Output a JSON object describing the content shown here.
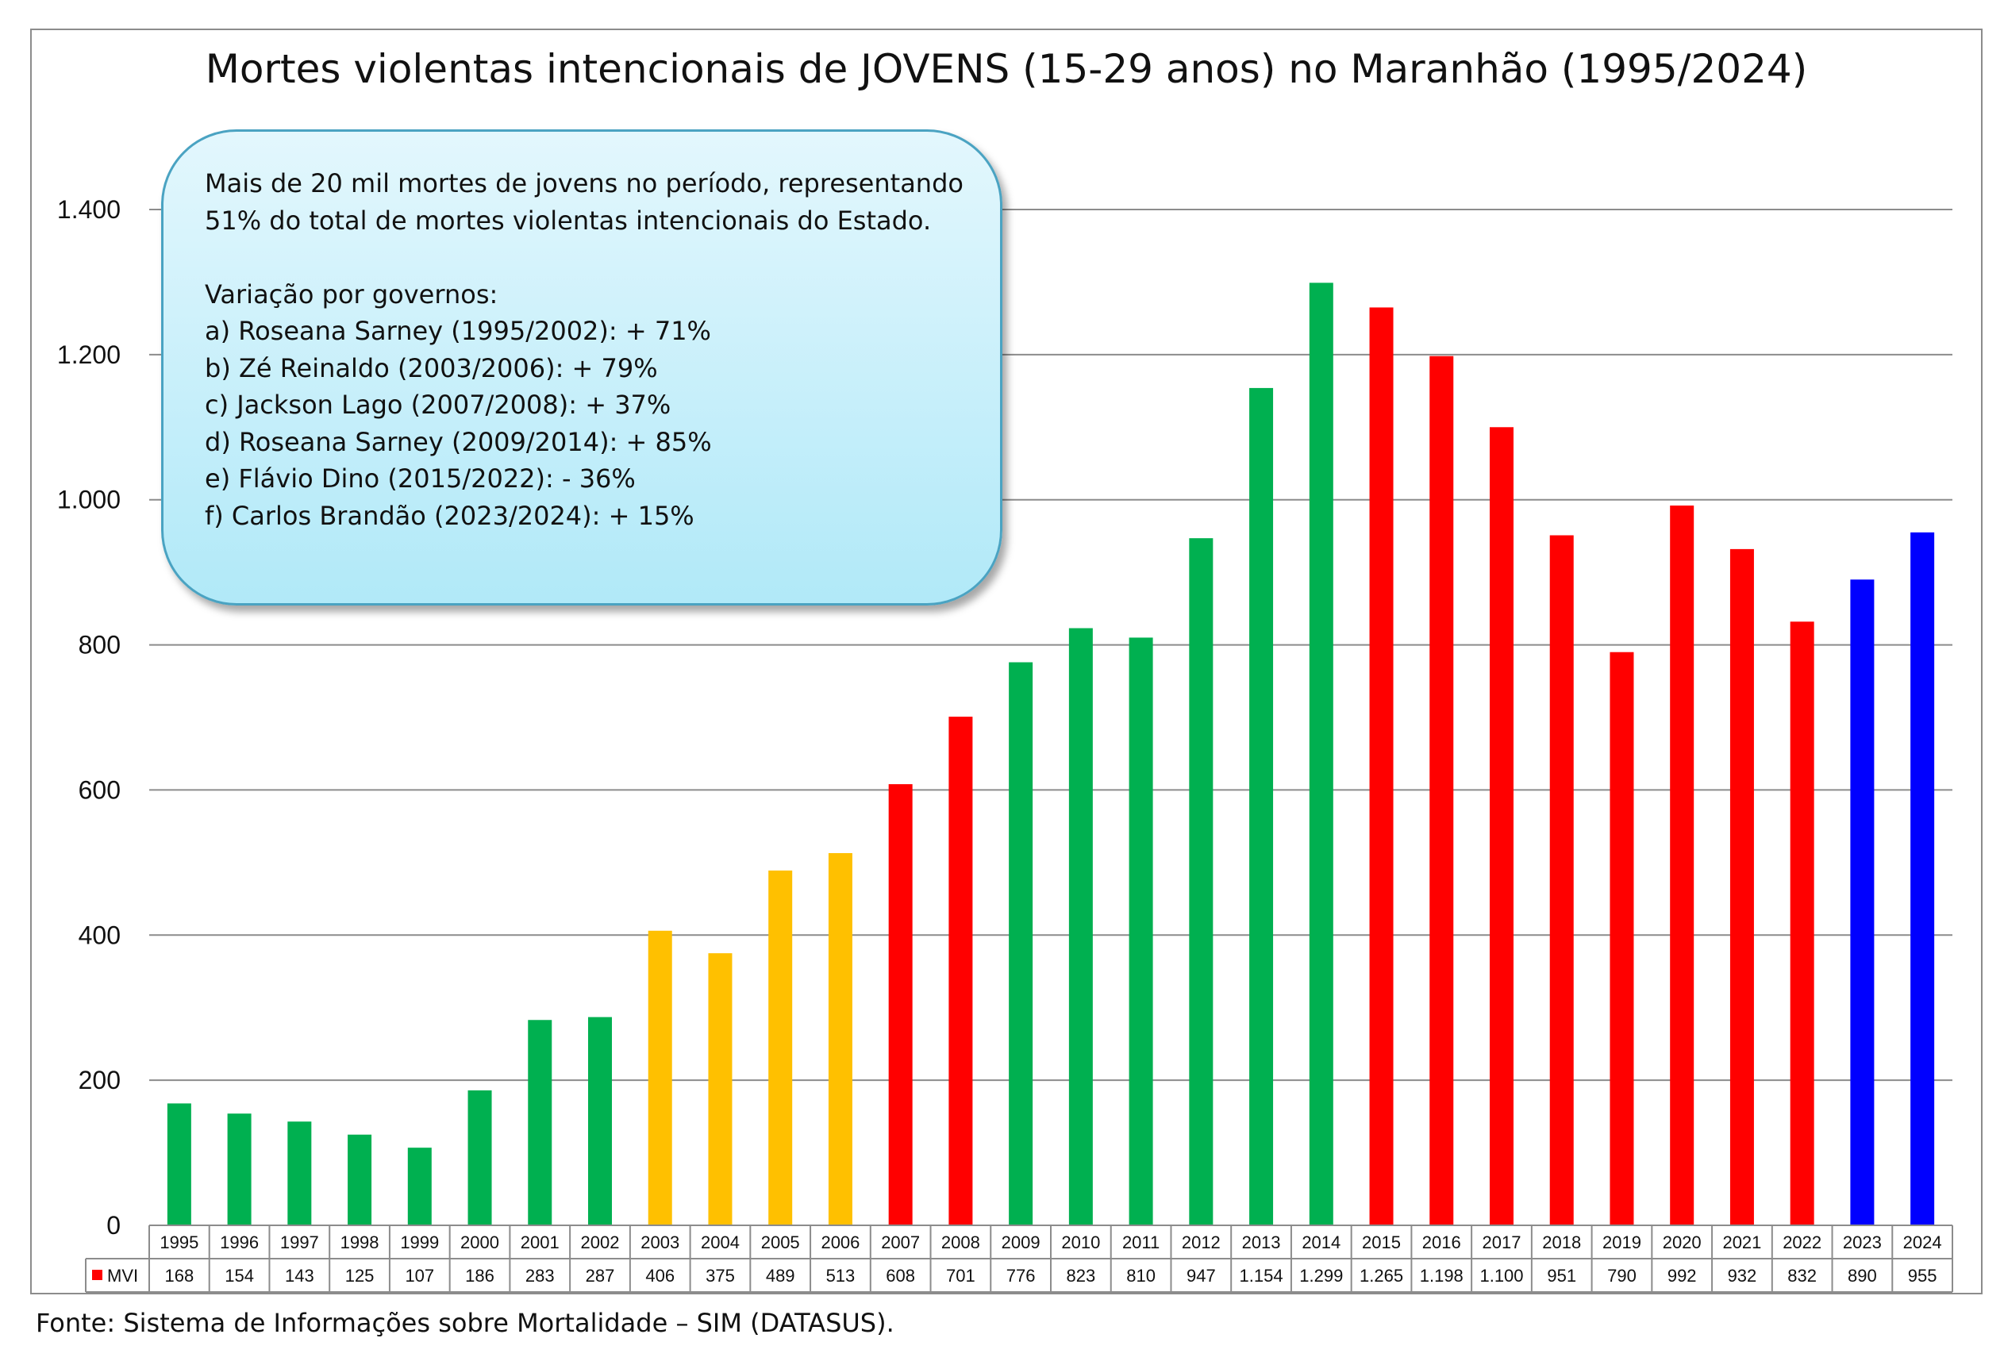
{
  "chart_data": {
    "type": "bar",
    "title": "Mortes violentas intencionais de JOVENS (15-29 anos) no Maranhão (1995/2024)",
    "categories": [
      "1995",
      "1996",
      "1997",
      "1998",
      "1999",
      "2000",
      "2001",
      "2002",
      "2003",
      "2004",
      "2005",
      "2006",
      "2007",
      "2008",
      "2009",
      "2010",
      "2011",
      "2012",
      "2013",
      "2014",
      "2015",
      "2016",
      "2017",
      "2018",
      "2019",
      "2020",
      "2021",
      "2022",
      "2023",
      "2024"
    ],
    "series": [
      {
        "name": "MVI",
        "legend_color": "#ff0000",
        "values": [
          168,
          154,
          143,
          125,
          107,
          186,
          283,
          287,
          406,
          375,
          489,
          513,
          608,
          701,
          776,
          823,
          810,
          947,
          1154,
          1299,
          1265,
          1198,
          1100,
          951,
          790,
          992,
          932,
          832,
          890,
          955
        ]
      }
    ],
    "value_labels": [
      "168",
      "154",
      "143",
      "125",
      "107",
      "186",
      "283",
      "287",
      "406",
      "375",
      "489",
      "513",
      "608",
      "701",
      "776",
      "823",
      "810",
      "947",
      "1.154",
      "1.299",
      "1.265",
      "1.198",
      "1.100",
      "951",
      "790",
      "992",
      "932",
      "832",
      "890",
      "955"
    ],
    "bar_colors": [
      "#00b050",
      "#00b050",
      "#00b050",
      "#00b050",
      "#00b050",
      "#00b050",
      "#00b050",
      "#00b050",
      "#ffc000",
      "#ffc000",
      "#ffc000",
      "#ffc000",
      "#ff0000",
      "#ff0000",
      "#00b050",
      "#00b050",
      "#00b050",
      "#00b050",
      "#00b050",
      "#00b050",
      "#ff0000",
      "#ff0000",
      "#ff0000",
      "#ff0000",
      "#ff0000",
      "#ff0000",
      "#ff0000",
      "#ff0000",
      "#0000ff",
      "#0000ff"
    ],
    "ylim": [
      0,
      1400
    ],
    "yticks": [
      0,
      200,
      400,
      600,
      800,
      1000,
      1200,
      1400
    ],
    "ytick_labels": [
      "0",
      "200",
      "400",
      "600",
      "800",
      "1.000",
      "1.200",
      "1.400"
    ],
    "grid": true,
    "xlabel": "",
    "ylabel": "",
    "data_table": true
  },
  "annotation": {
    "lines": [
      "Mais de 20 mil mortes de jovens no período, representando",
      "51% do total de mortes violentas intencionais do Estado.",
      "",
      "Variação por governos:",
      "a) Roseana Sarney (1995/2002): + 71%",
      "b) Zé Reinaldo (2003/2006): + 79%",
      "c) Jackson Lago (2007/2008): + 37%",
      "d) Roseana Sarney (2009/2014): + 85%",
      "e) Flávio Dino (2015/2022): - 36%",
      "f) Carlos Brandão (2023/2024): + 15%"
    ]
  },
  "source": "Fonte: Sistema de Informações sobre Mortalidade – SIM (DATASUS)."
}
